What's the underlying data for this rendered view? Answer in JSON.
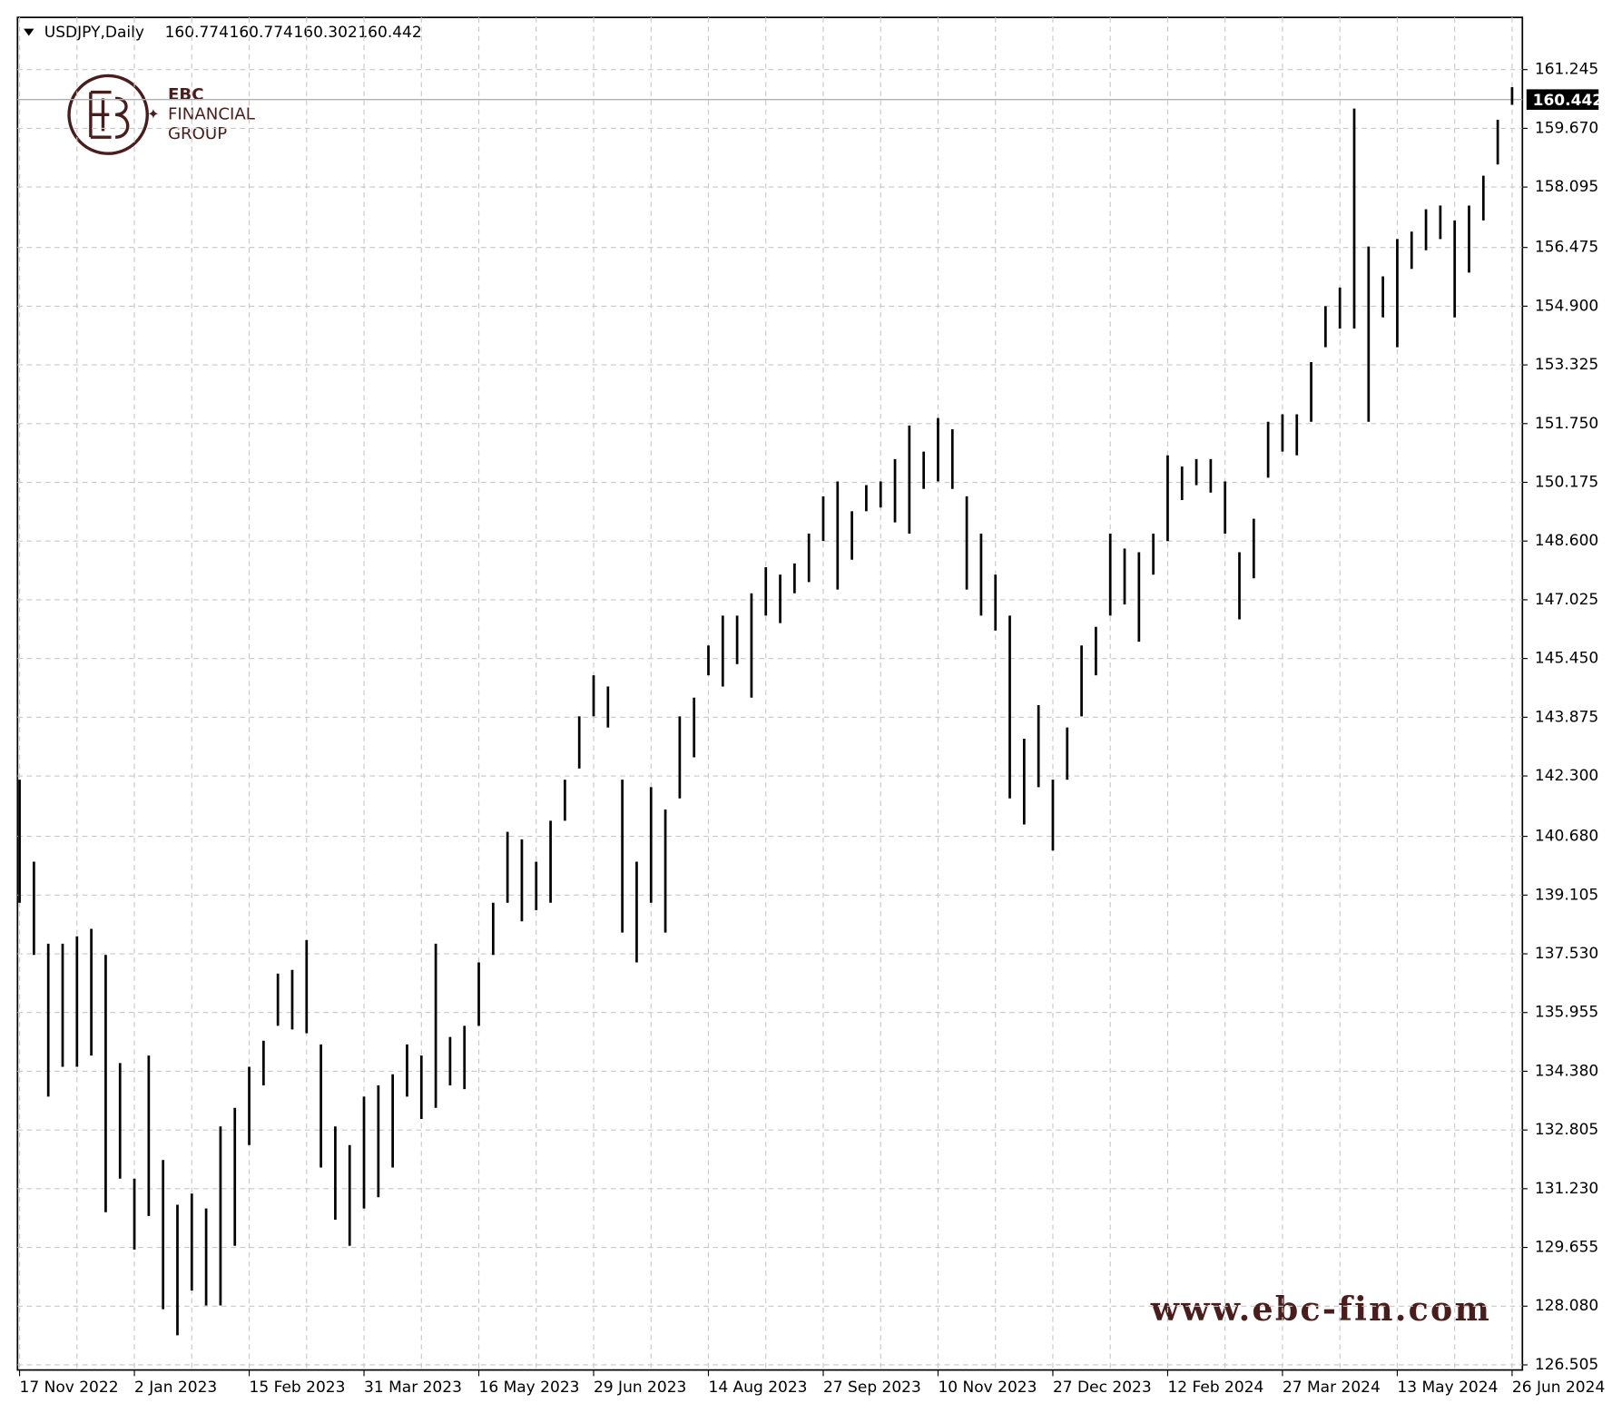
{
  "chart_data": {
    "type": "ohlc",
    "title": "USDJPY,Daily",
    "header_values": [
      160.774,
      160.774,
      160.302,
      160.442
    ],
    "last_price": 160.442,
    "color": "#000000",
    "grid": true,
    "categories": [
      "17 Nov 2022",
      null,
      null,
      null,
      null,
      null,
      null,
      null,
      "2 Jan 2023",
      null,
      null,
      null,
      null,
      null,
      null,
      null,
      "15 Feb 2023",
      null,
      null,
      null,
      null,
      null,
      null,
      null,
      "31 Mar 2023",
      null,
      null,
      null,
      null,
      null,
      null,
      null,
      "16 May 2023",
      null,
      null,
      null,
      null,
      null,
      null,
      null,
      "29 Jun 2023",
      null,
      null,
      null,
      null,
      null,
      null,
      null,
      "14 Aug 2023",
      null,
      null,
      null,
      null,
      null,
      null,
      null,
      "27 Sep 2023",
      null,
      null,
      null,
      null,
      null,
      null,
      null,
      "10 Nov 2023",
      null,
      null,
      null,
      null,
      null,
      null,
      null,
      "27 Dec 2023",
      null,
      null,
      null,
      null,
      null,
      null,
      null,
      "12 Feb 2024",
      null,
      null,
      null,
      null,
      null,
      null,
      null,
      "27 Mar 2024",
      null,
      null,
      null,
      null,
      null,
      null,
      null,
      "13 May 2024",
      null,
      null,
      null,
      null,
      null,
      null,
      null,
      "26 Jun 2024"
    ],
    "high": [
      142.2,
      140.0,
      137.8,
      137.8,
      138.0,
      138.2,
      137.5,
      134.6,
      131.5,
      134.8,
      132.0,
      130.8,
      131.1,
      130.7,
      132.9,
      133.4,
      134.5,
      135.2,
      137.0,
      137.1,
      137.9,
      135.1,
      132.9,
      132.4,
      133.7,
      134.0,
      134.3,
      135.1,
      134.8,
      137.8,
      135.3,
      135.6,
      137.3,
      138.9,
      140.8,
      140.6,
      140.0,
      141.1,
      142.2,
      143.9,
      145.0,
      144.7,
      142.2,
      140.0,
      142.0,
      141.4,
      143.9,
      144.4,
      145.8,
      146.6,
      146.6,
      147.2,
      147.9,
      147.7,
      148.0,
      148.8,
      149.8,
      150.2,
      149.4,
      150.1,
      150.2,
      150.8,
      151.7,
      151.0,
      151.9,
      151.6,
      149.8,
      148.8,
      147.7,
      146.6,
      143.3,
      144.2,
      142.2,
      143.6,
      145.8,
      146.3,
      148.8,
      148.4,
      148.3,
      148.8,
      150.9,
      150.6,
      150.8,
      150.8,
      150.2,
      148.3,
      149.2,
      151.8,
      152.0,
      152.0,
      153.4,
      154.9,
      155.4,
      160.2,
      156.5,
      155.7,
      156.7,
      156.9,
      157.5,
      157.6,
      157.2,
      157.6,
      158.4,
      159.9,
      160.774
    ],
    "low": [
      138.9,
      137.5,
      133.7,
      134.5,
      134.5,
      134.8,
      130.6,
      131.5,
      129.6,
      130.5,
      128.0,
      127.3,
      128.5,
      128.1,
      128.1,
      129.7,
      132.4,
      134.0,
      135.6,
      135.5,
      135.4,
      131.8,
      130.4,
      129.7,
      130.7,
      131.0,
      131.8,
      133.7,
      133.1,
      133.4,
      134.0,
      133.9,
      135.6,
      137.5,
      138.9,
      138.4,
      138.7,
      138.9,
      141.1,
      142.5,
      143.9,
      143.6,
      138.1,
      137.3,
      138.9,
      138.1,
      141.7,
      142.8,
      145.0,
      144.7,
      145.3,
      144.4,
      146.6,
      146.4,
      147.2,
      147.5,
      148.6,
      147.3,
      148.1,
      149.4,
      149.5,
      149.1,
      148.8,
      150.0,
      150.2,
      150.0,
      147.3,
      146.6,
      146.2,
      141.7,
      141.0,
      142.0,
      140.3,
      142.2,
      143.9,
      145.0,
      146.6,
      146.9,
      145.9,
      147.7,
      148.6,
      149.7,
      150.1,
      149.9,
      148.8,
      146.5,
      147.6,
      150.3,
      151.0,
      150.9,
      151.8,
      153.8,
      154.3,
      154.3,
      151.8,
      154.6,
      153.8,
      155.9,
      156.4,
      156.7,
      154.6,
      155.8,
      157.2,
      158.7,
      160.302
    ],
    "ylim": [
      126.368,
      162.645
    ],
    "yticks": [
      {
        "value": 126.505,
        "label": "126.505"
      },
      {
        "value": 128.08,
        "label": "128.080"
      },
      129.655,
      {
        "value": 131.23,
        "label": "131.230"
      },
      132.805,
      {
        "value": 134.38,
        "label": "134.380"
      },
      135.955,
      {
        "value": 137.53,
        "label": "137.530"
      },
      139.105,
      {
        "value": 140.68,
        "label": "140.680"
      },
      {
        "value": 142.3,
        "label": "142.300"
      },
      143.875,
      {
        "value": 145.45,
        "label": "145.450"
      },
      147.025,
      {
        "value": 148.6,
        "label": "148.600"
      },
      150.175,
      {
        "value": 151.75,
        "label": "151.750"
      },
      153.325,
      {
        "value": 154.9,
        "label": "154.900"
      },
      156.475,
      158.095,
      {
        "value": 159.67,
        "label": "159.670"
      },
      161.245
    ]
  },
  "logo": {
    "mark": "EBC",
    "line1": "FINANCIAL",
    "line2": "GROUP"
  },
  "watermark": "www.ebc-fin.com"
}
